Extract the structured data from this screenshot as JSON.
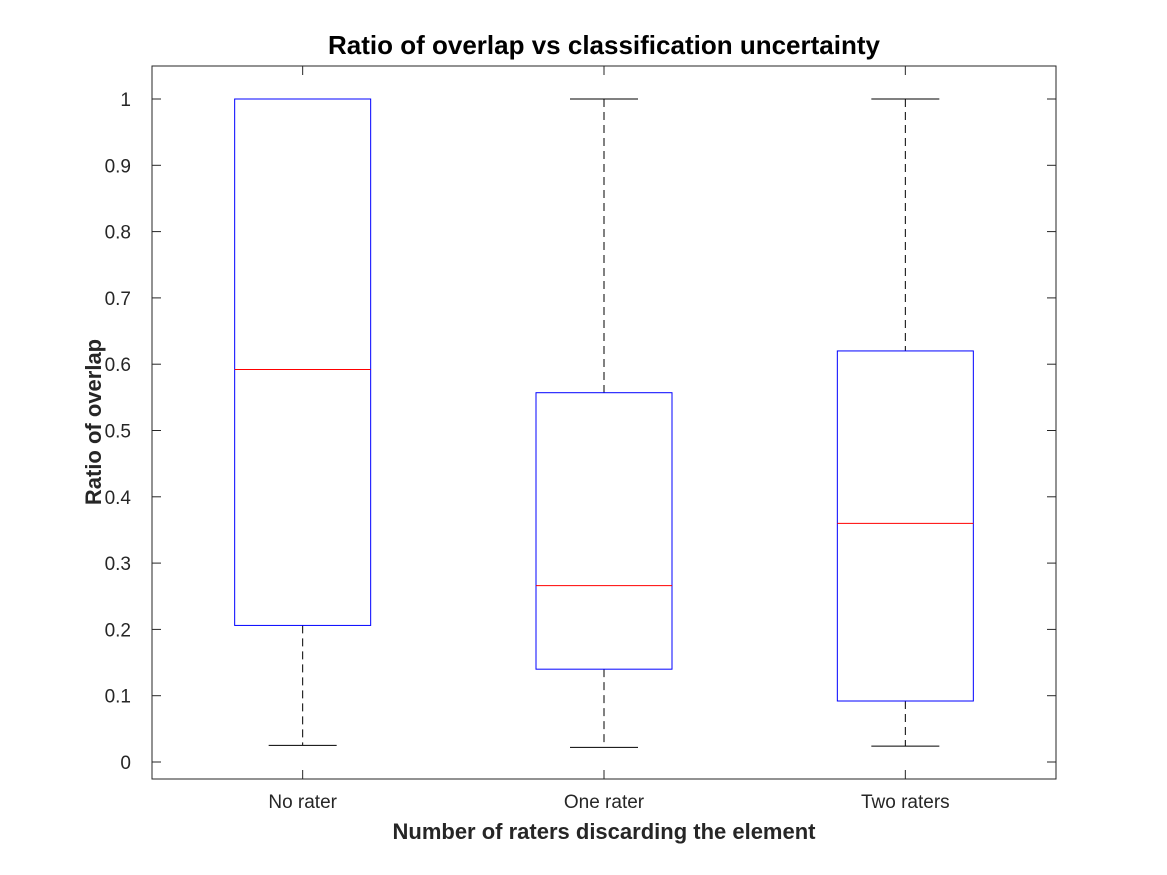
{
  "chart_data": {
    "type": "box",
    "title": "Ratio of overlap vs classification uncertainty",
    "xlabel": "Number of raters discarding the element",
    "ylabel": "Ratio of overlap",
    "categories": [
      "No rater",
      "One rater",
      "Two raters"
    ],
    "ylim": [
      -0.025,
      1.05
    ],
    "yticks": [
      0,
      0.1,
      0.2,
      0.3,
      0.4,
      0.5,
      0.6,
      0.7,
      0.8,
      0.9,
      1
    ],
    "ytick_labels": [
      "0",
      "0.1",
      "0.2",
      "0.3",
      "0.4",
      "0.5",
      "0.6",
      "0.7",
      "0.8",
      "0.9",
      "1"
    ],
    "grid": false,
    "boxes": [
      {
        "category": "No rater",
        "whisker_low": 0.025,
        "q1": 0.206,
        "median": 0.592,
        "q3": 1.0,
        "whisker_high": 1.0
      },
      {
        "category": "One rater",
        "whisker_low": 0.022,
        "q1": 0.14,
        "median": 0.266,
        "q3": 0.557,
        "whisker_high": 1.0
      },
      {
        "category": "Two raters",
        "whisker_low": 0.024,
        "q1": 0.092,
        "median": 0.36,
        "q3": 0.62,
        "whisker_high": 1.0
      }
    ],
    "colors": {
      "box": "#0000ff",
      "median": "#ff0000",
      "whisker": "#000000",
      "axes": "#262626"
    }
  }
}
